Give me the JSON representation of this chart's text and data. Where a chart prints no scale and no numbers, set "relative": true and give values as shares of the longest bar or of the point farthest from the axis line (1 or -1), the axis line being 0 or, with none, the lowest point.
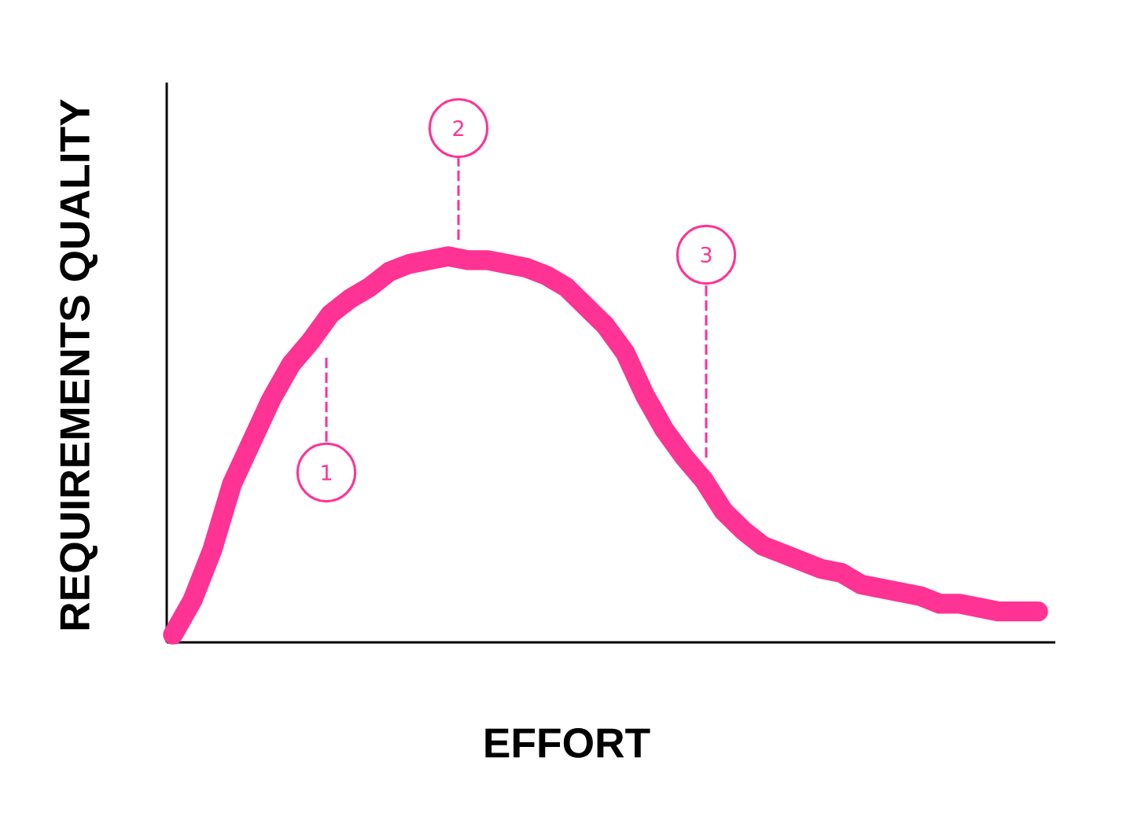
{
  "chart_data": {
    "type": "line",
    "xlabel": "EFFORT",
    "ylabel": "REQUIREMENTS QUALITY",
    "relative": true,
    "color": "#ff3394",
    "categories": [
      null,
      null,
      null,
      null,
      null,
      null,
      null,
      null,
      null,
      null,
      null,
      null,
      null,
      null,
      null,
      null,
      null,
      null,
      null,
      null,
      null,
      null,
      null,
      null,
      null,
      null,
      null,
      null,
      null,
      null,
      null,
      null,
      null,
      null,
      null,
      null,
      null,
      null,
      null,
      null,
      null,
      null,
      null,
      null,
      null
    ],
    "values": [
      0.02,
      0.11,
      0.24,
      0.41,
      0.52,
      0.63,
      0.72,
      0.78,
      0.85,
      0.89,
      0.92,
      0.96,
      0.98,
      0.99,
      1.0,
      0.99,
      0.99,
      0.98,
      0.97,
      0.95,
      0.92,
      0.87,
      0.82,
      0.75,
      0.64,
      0.55,
      0.48,
      0.42,
      0.34,
      0.29,
      0.25,
      0.23,
      0.21,
      0.19,
      0.18,
      0.15,
      0.14,
      0.13,
      0.12,
      0.1,
      0.1,
      0.09,
      0.08,
      0.08,
      0.08
    ],
    "annotations": [
      "1",
      "2",
      "3"
    ]
  }
}
